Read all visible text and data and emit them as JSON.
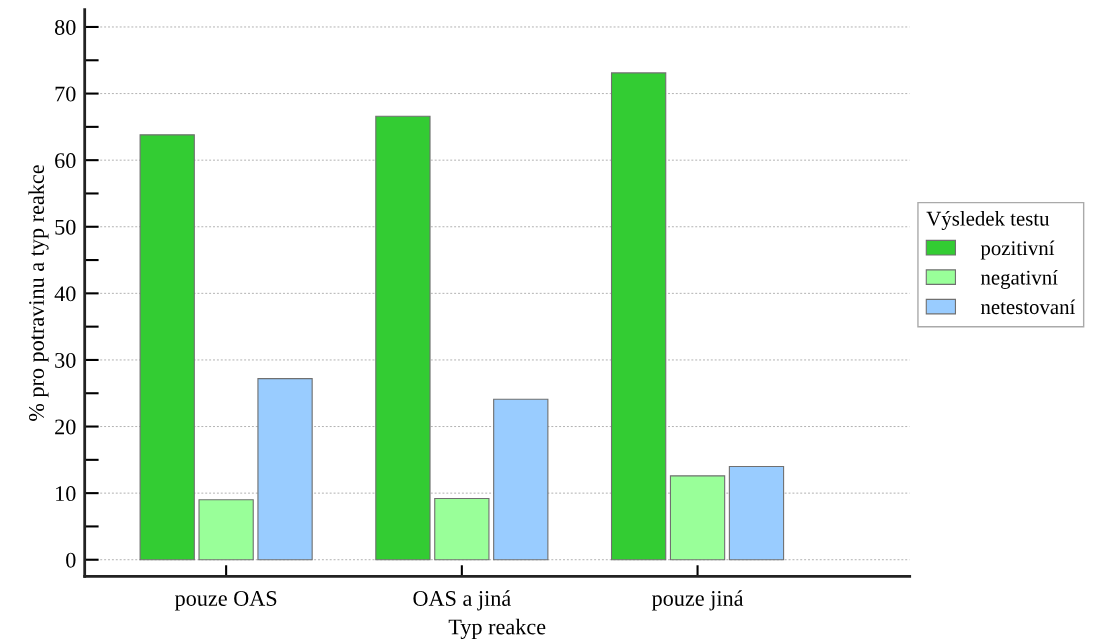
{
  "chart_data": {
    "type": "bar",
    "xlabel": "Typ reakce",
    "ylabel": "% pro potravinu a typ reakce",
    "legend_title": "Výsledek testu",
    "legend": "right",
    "categories": [
      "pouze OAS",
      "OAS a jiná",
      "pouze jiná"
    ],
    "series": [
      {
        "name": "pozitivní",
        "color": "#33cc33",
        "values": [
          63.8,
          66.6,
          73.1
        ]
      },
      {
        "name": "negativní",
        "color": "#99ff99",
        "values": [
          9.0,
          9.2,
          12.6
        ]
      },
      {
        "name": "netestovaní",
        "color": "#99ccff",
        "values": [
          27.2,
          24.1,
          14.0
        ]
      }
    ],
    "ylim": [
      -2.5,
      82.6
    ],
    "yticks": [
      0,
      {
        "value": 5,
        "label": null
      },
      10,
      {
        "value": 15,
        "label": null
      },
      20,
      {
        "value": 25,
        "label": null
      },
      30,
      {
        "value": 35,
        "label": null
      },
      40,
      {
        "value": 45,
        "label": null
      },
      50,
      {
        "value": 55,
        "label": null
      },
      60,
      {
        "value": 65,
        "label": null
      },
      70,
      {
        "value": 75,
        "label": null
      },
      80
    ],
    "grid": "y"
  }
}
